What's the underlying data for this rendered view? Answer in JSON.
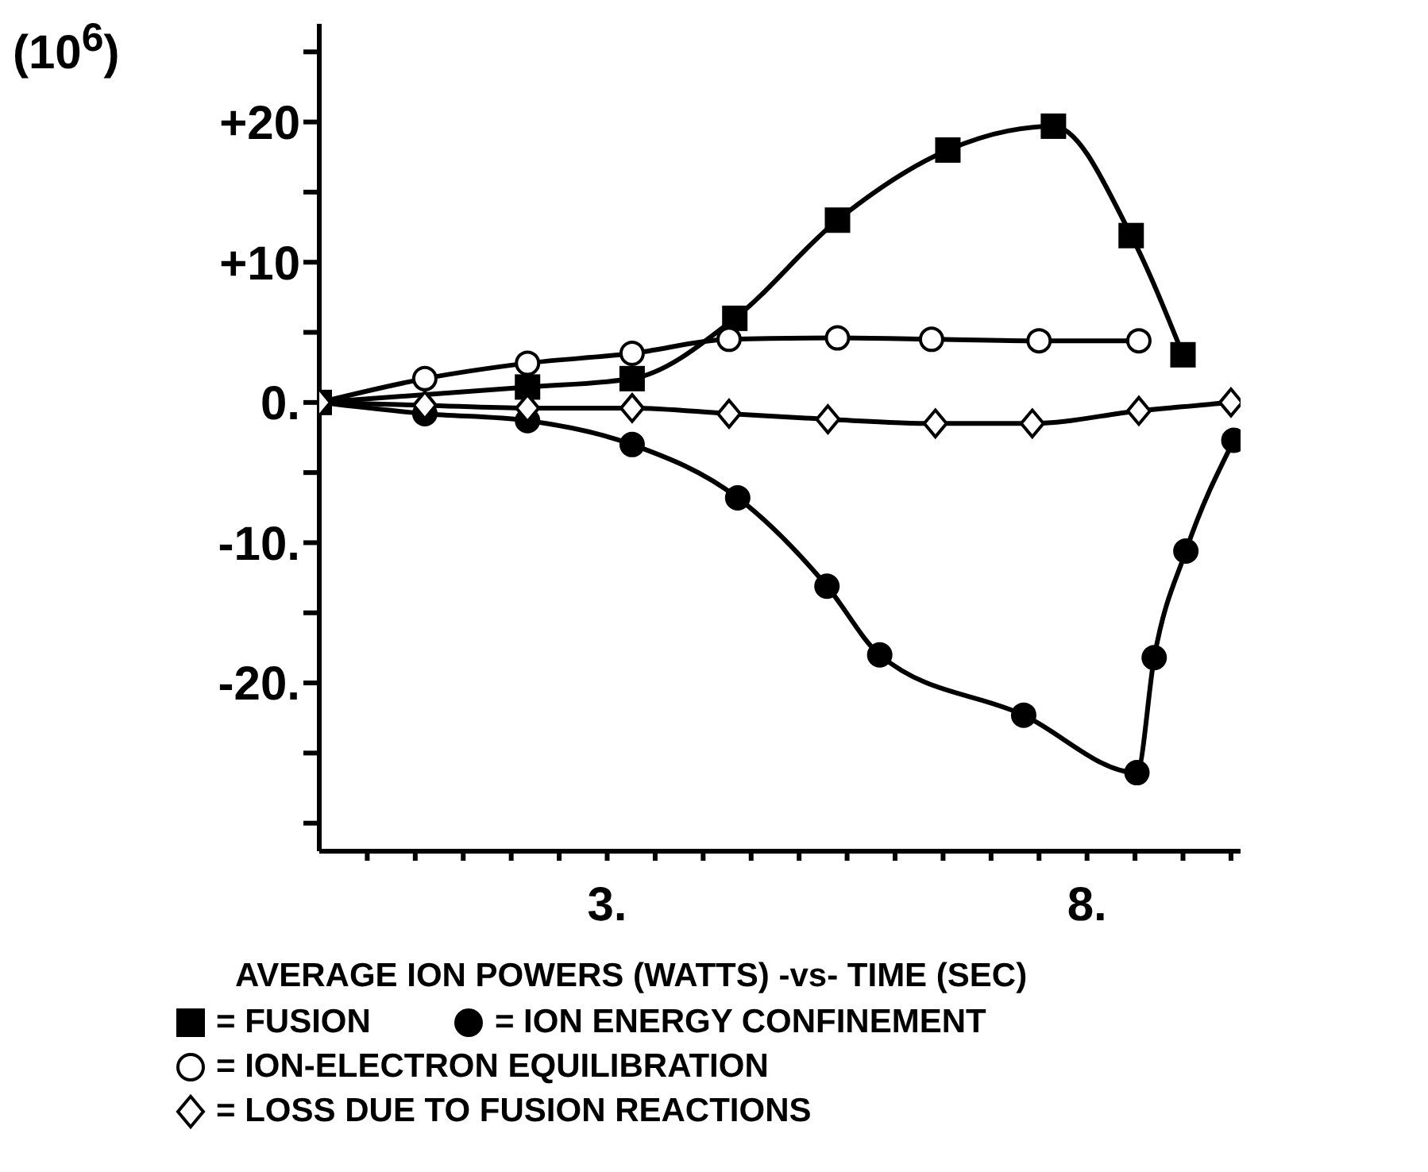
{
  "chart_data": {
    "type": "line",
    "xlabel": "AVERAGE ION POWERS (WATTS) -vs- TIME (SEC)",
    "ylabel": "(10$^{6}$)",
    "xlim": [
      0,
      9.6
    ],
    "ylim": [
      -32,
      27
    ],
    "xticks": [
      {
        "value": 0.5,
        "label": null
      },
      {
        "value": 1,
        "label": null
      },
      {
        "value": 1.5,
        "label": null
      },
      {
        "value": 2,
        "label": null
      },
      {
        "value": 2.5,
        "label": null
      },
      {
        "value": 3,
        "label": "3."
      },
      {
        "value": 3.5,
        "label": null
      },
      {
        "value": 4,
        "label": null
      },
      {
        "value": 4.5,
        "label": null
      },
      {
        "value": 5,
        "label": null
      },
      {
        "value": 5.5,
        "label": null
      },
      {
        "value": 6,
        "label": null
      },
      {
        "value": 6.5,
        "label": null
      },
      {
        "value": 7,
        "label": null
      },
      {
        "value": 7.5,
        "label": null
      },
      {
        "value": 8,
        "label": "8."
      },
      {
        "value": 8.5,
        "label": null
      },
      {
        "value": 9,
        "label": null
      },
      {
        "value": 9.5,
        "label": null
      }
    ],
    "yticks": [
      {
        "value": -30,
        "label": null
      },
      {
        "value": -25,
        "label": null
      },
      {
        "value": -20,
        "label": "-20."
      },
      {
        "value": -15,
        "label": null
      },
      {
        "value": -10,
        "label": "-10."
      },
      {
        "value": -5,
        "label": null
      },
      {
        "value": 0,
        "label": "0."
      },
      {
        "value": 5,
        "label": null
      },
      {
        "value": 10,
        "label": "+10"
      },
      {
        "value": 15,
        "label": null
      },
      {
        "value": 20,
        "label": "+20"
      },
      {
        "value": 25,
        "label": null
      }
    ],
    "grid": false,
    "legend": "bottom",
    "line_style": "solid",
    "series": [
      {
        "name": "= FUSION",
        "color": "#000000",
        "marker": "square",
        "x": [
          0,
          2.17,
          3.26,
          4.33,
          5.4,
          6.55,
          7.65,
          8.46,
          9.0
        ],
        "values": [
          0,
          1.1,
          1.7,
          6.0,
          13.0,
          18.0,
          19.7,
          11.9,
          3.4
        ]
      },
      {
        "name": "= ION ENERGY CONFINEMENT",
        "color": "#000000",
        "marker": "circle",
        "x": [
          0,
          1.1,
          2.17,
          3.26,
          4.36,
          5.29,
          5.84,
          7.34,
          8.52,
          8.7,
          9.03,
          9.53
        ],
        "values": [
          0,
          -0.8,
          -1.3,
          -3.0,
          -6.8,
          -13.1,
          -18.0,
          -22.3,
          -26.4,
          -18.2,
          -10.6,
          -2.7
        ]
      },
      {
        "name": "= ION-ELECTRON EQUILIBRATION",
        "color": "#000000",
        "marker": "circle",
        "x": [
          0,
          1.1,
          2.17,
          3.26,
          4.27,
          5.4,
          6.38,
          7.5,
          8.54
        ],
        "values": [
          0,
          1.7,
          2.8,
          3.5,
          4.5,
          4.6,
          4.5,
          4.4,
          4.4
        ]
      },
      {
        "name": "= LOSS DUE TO FUSION REACTIONS",
        "color": "#000000",
        "marker": "diamond",
        "x": [
          0,
          1.1,
          2.17,
          3.26,
          4.27,
          5.3,
          6.42,
          7.43,
          8.54,
          9.5
        ],
        "values": [
          0,
          -0.2,
          -0.4,
          -0.4,
          -0.8,
          -1.2,
          -1.5,
          -1.5,
          -0.6,
          0
        ]
      }
    ]
  }
}
